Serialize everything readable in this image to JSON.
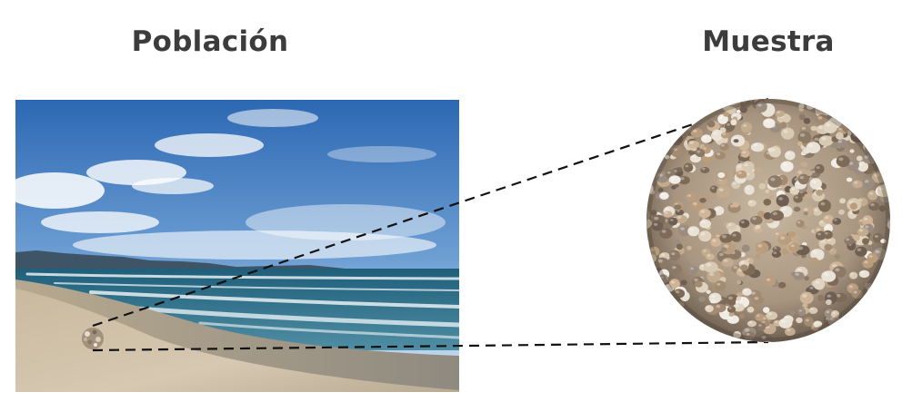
{
  "labels": {
    "population": "Población",
    "sample": "Muestra"
  },
  "colors": {
    "heading": "#3c3c3c",
    "sky_top": "#2f6fb8",
    "sky_bottom": "#d9e8f5",
    "sea": "#2e6f86",
    "foam": "#f4f8fa",
    "sand": "#cdbfa9",
    "connector": "#111111"
  },
  "icons": {
    "photo": "beach-photo",
    "magnifier": "sand-grains-closeup"
  }
}
